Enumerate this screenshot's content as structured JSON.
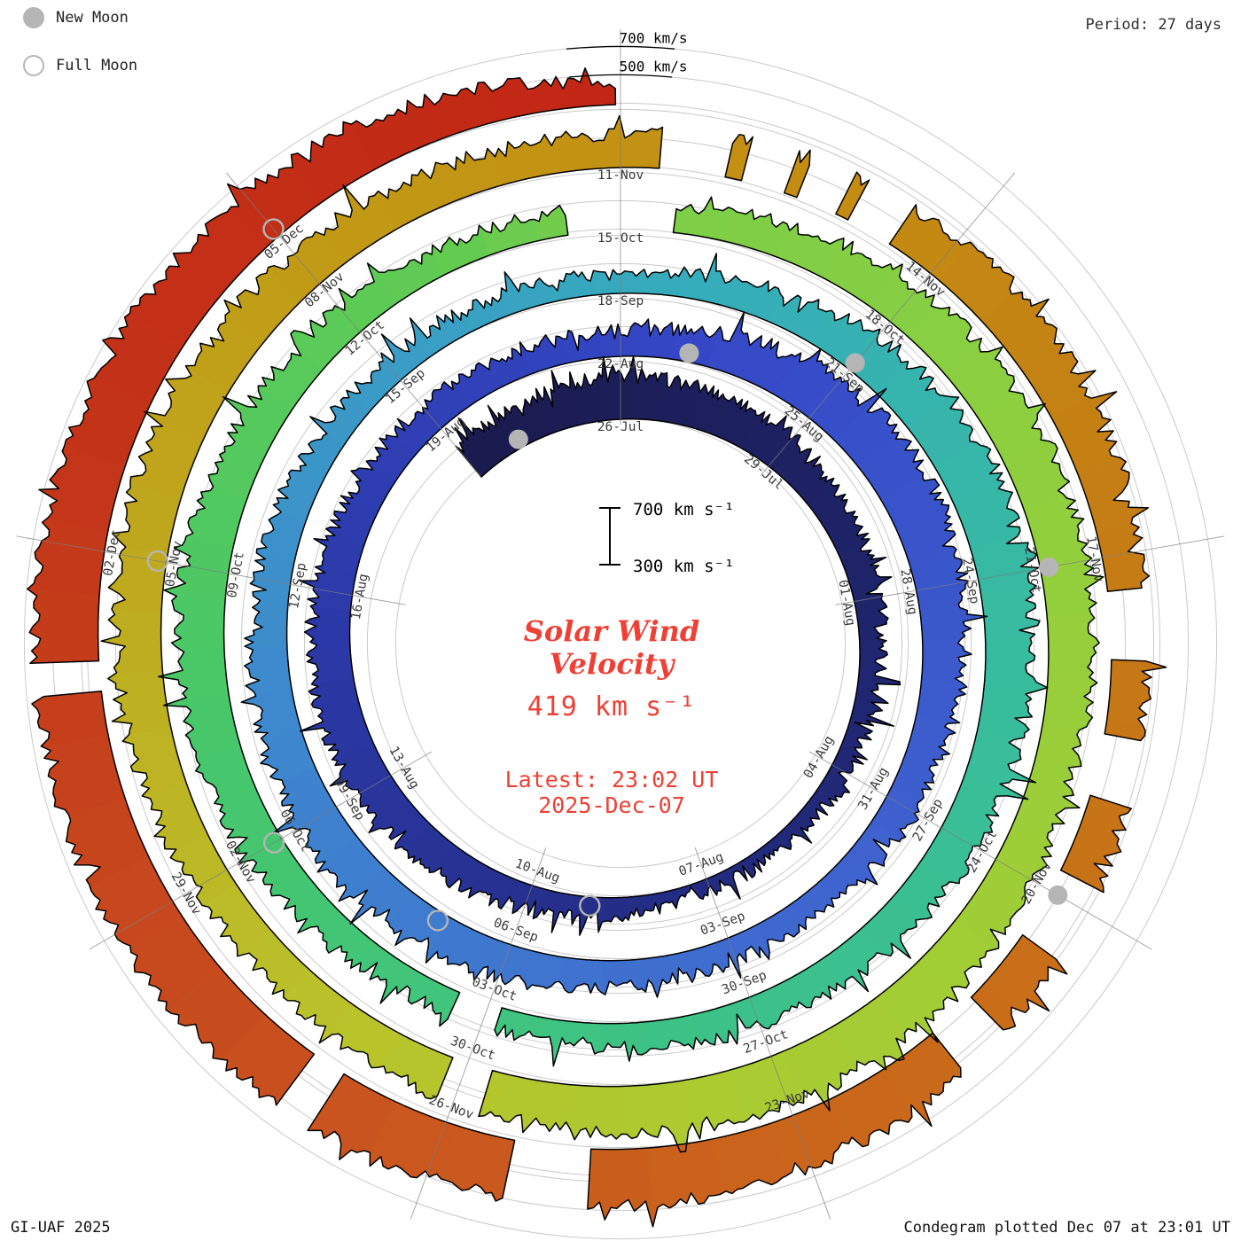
{
  "header": {
    "legend_new_moon": "New Moon",
    "legend_full_moon": "Full Moon",
    "period_label": "Period: 27 days"
  },
  "footer": {
    "credit": "GI-UAF 2025",
    "plotted": "Condegram plotted Dec 07 at 23:01 UT"
  },
  "center": {
    "title_line1": "Solar Wind",
    "title_line2": "Velocity",
    "value": "419 km s⁻¹",
    "latest_line1": "Latest: 23:02 UT",
    "latest_line2": "2025-Dec-07",
    "scale_top": "700 km s⁻¹",
    "scale_bottom": "300 km s⁻¹"
  },
  "ring_labels": {
    "outer_700": "700 km/s",
    "outer_500": "500 km/s"
  },
  "colors": {
    "text_red": "#ee4035",
    "label_gray": "#3a3a3a",
    "grid_gray": "#c9c9c9",
    "spoke_gray": "#7d7d7d",
    "moon_gray": "#b5b5b5",
    "outline_black": "#000000"
  },
  "chart_data": {
    "type": "polar-spiral-condegram",
    "title": "Solar Wind Velocity",
    "period_days": 27,
    "sector_step_days": 3,
    "first_spoke_offset_days": 3,
    "days_total": 137.96,
    "start_date": "2025-Jul-23",
    "end_date": "2025-Dec-07 23:02 UT",
    "latest_velocity_kms": 419,
    "radial_axis": {
      "min_kms": 300,
      "max_kms": 700,
      "grid_levels_kms": [
        300,
        500,
        700
      ]
    },
    "spoke_dates": [
      "26-Jul",
      "29-Jul",
      "01-Aug",
      "04-Aug",
      "07-Aug",
      "10-Aug",
      "13-Aug",
      "16-Aug",
      "19-Aug",
      "22-Aug",
      "25-Aug",
      "28-Aug",
      "31-Aug",
      "03-Sep",
      "06-Sep",
      "09-Sep",
      "12-Sep",
      "15-Sep",
      "18-Sep",
      "21-Sep",
      "24-Sep",
      "27-Sep",
      "30-Sep",
      "03-Oct",
      "06-Oct",
      "09-Oct",
      "12-Oct",
      "15-Oct",
      "18-Oct",
      "21-Oct",
      "24-Oct",
      "27-Oct",
      "30-Oct",
      "02-Nov",
      "05-Nov",
      "08-Nov",
      "11-Nov",
      "14-Nov",
      "17-Nov",
      "20-Nov",
      "23-Nov",
      "26-Nov",
      "29-Nov",
      "02-Dec",
      "05-Dec"
    ],
    "velocity_kms_daily": {
      "start": "23-Jul",
      "cadence_days": 1,
      "values": [
        540,
        565,
        585,
        595,
        580,
        570,
        560,
        530,
        500,
        470,
        445,
        430,
        420,
        400,
        385,
        375,
        390,
        430,
        470,
        510,
        545,
        565,
        580,
        570,
        550,
        530,
        515,
        505,
        490,
        475,
        465,
        520,
        590,
        640,
        660,
        650,
        620,
        580,
        545,
        515,
        490,
        470,
        455,
        470,
        500,
        530,
        560,
        585,
        595,
        575,
        550,
        530,
        505,
        480,
        460,
        445,
        435,
        430,
        470,
        530,
        590,
        635,
        655,
        645,
        620,
        595,
        575,
        550,
        525,
        505,
        480,
        455,
        440,
        470,
        520,
        570,
        605,
        625,
        615,
        585,
        550,
        520,
        490,
        465,
        450,
        500,
        560,
        600,
        625,
        635,
        620,
        595,
        575,
        590,
        620,
        645,
        655,
        635,
        605,
        580,
        560,
        545,
        555,
        585,
        615,
        635,
        625,
        600,
        580,
        555,
        535,
        525,
        560,
        580,
        610,
        630,
        600,
        560,
        530,
        550,
        590,
        620,
        650,
        665,
        680,
        690,
        700,
        715,
        730,
        740,
        745,
        740,
        730,
        720,
        700,
        670,
        620,
        540,
        419
      ]
    },
    "gaps_day_ranges": [
      [
        71.85,
        72.35
      ],
      [
        83.45,
        84.55
      ],
      [
        98.75,
        99.15
      ],
      [
        111.35,
        111.95
      ],
      [
        112.1,
        112.5
      ],
      [
        112.62,
        113.0
      ],
      [
        113.12,
        113.55
      ],
      [
        117.3,
        117.9
      ],
      [
        118.55,
        119.1
      ],
      [
        119.8,
        120.45
      ],
      [
        121.15,
        121.6
      ],
      [
        124.75,
        125.4
      ],
      [
        126.95,
        127.25
      ],
      [
        130.85,
        131.1
      ]
    ],
    "moons": {
      "new_moon": [
        {
          "label": "24-Jul",
          "day": 1
        },
        {
          "label": "23-Aug",
          "day": 31
        },
        {
          "label": "21-Sep",
          "day": 60
        },
        {
          "label": "21-Oct",
          "day": 90
        },
        {
          "label": "20-Nov",
          "day": 120
        }
      ],
      "full_moon": [
        {
          "label": "09-Aug",
          "day": 17
        },
        {
          "label": "07-Sep",
          "day": 46
        },
        {
          "label": "06-Oct",
          "day": 75
        },
        {
          "label": "05-Nov",
          "day": 105
        },
        {
          "label": "05-Dec",
          "day": 135
        }
      ]
    },
    "colormap_stops": [
      [
        0,
        "#1a1b4e"
      ],
      [
        14,
        "#222a7c"
      ],
      [
        24,
        "#2c3aaa"
      ],
      [
        31,
        "#3547c6"
      ],
      [
        40,
        "#3f63cf"
      ],
      [
        48,
        "#3f82cf"
      ],
      [
        54,
        "#3a9cc6"
      ],
      [
        58,
        "#35adbb"
      ],
      [
        64,
        "#38bc9e"
      ],
      [
        70,
        "#3dc286"
      ],
      [
        76,
        "#46c76c"
      ],
      [
        82,
        "#60cb53"
      ],
      [
        84,
        "#7bce49"
      ],
      [
        90,
        "#92cf3c"
      ],
      [
        96,
        "#a8cc32"
      ],
      [
        100,
        "#b9c42b"
      ],
      [
        105,
        "#bfa91e"
      ],
      [
        109,
        "#c29714"
      ],
      [
        113,
        "#c48c12"
      ],
      [
        117,
        "#c57c15"
      ],
      [
        121,
        "#c96d19"
      ],
      [
        124,
        "#ca611d"
      ],
      [
        127,
        "#c9531f"
      ],
      [
        130,
        "#c6431d"
      ],
      [
        133,
        "#c33318"
      ],
      [
        139,
        "#c22414"
      ]
    ]
  }
}
